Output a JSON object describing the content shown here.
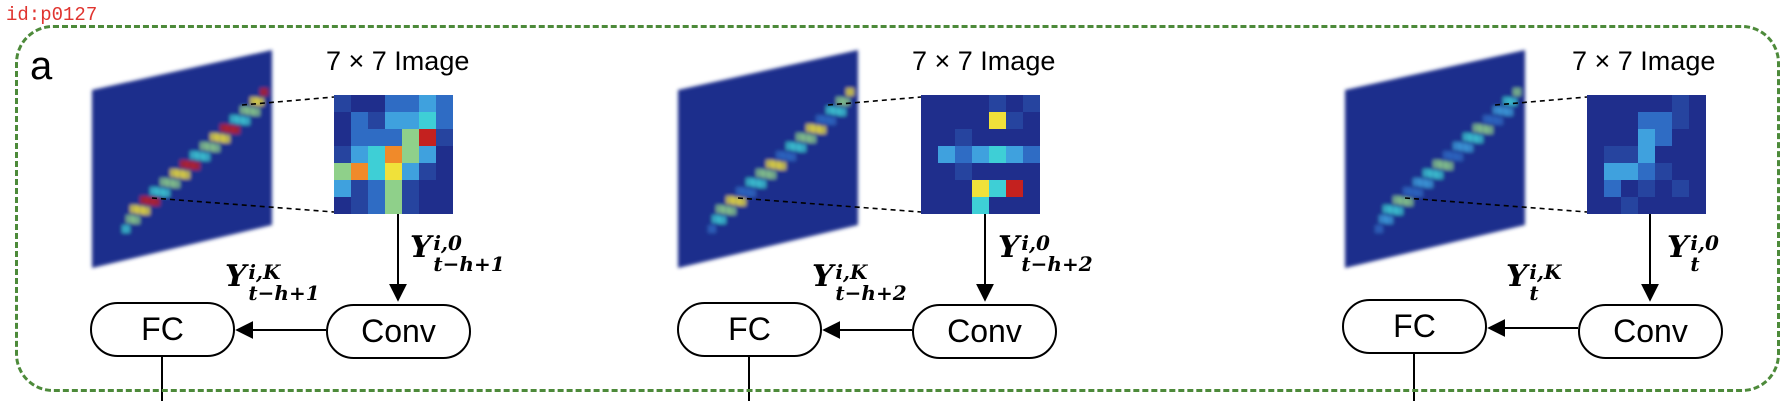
{
  "id_tag": "id:p0127",
  "panel_label": "a",
  "colors": {
    "dashed_border": "#4d8a3a",
    "heatmap_background": "#1f2e8c",
    "id_text": "#e0342f"
  },
  "blocks": [
    {
      "image_label": "7 × 7 Image",
      "conv_label": "Conv",
      "fc_label": "FC",
      "input": {
        "symbol": "Y",
        "sup": "i,0",
        "sub": "t−h+1"
      },
      "output": {
        "symbol": "Y",
        "sup": "i,K",
        "sub": "t−h+1"
      },
      "zoom_grid": [
        [
          2,
          1,
          1,
          3,
          3,
          4,
          3
        ],
        [
          1,
          3,
          2,
          4,
          4,
          5,
          3
        ],
        [
          1,
          3,
          3,
          3,
          6,
          9,
          2
        ],
        [
          2,
          4,
          5,
          8,
          6,
          4,
          1
        ],
        [
          6,
          8,
          5,
          7,
          4,
          2,
          1
        ],
        [
          4,
          2,
          3,
          6,
          2,
          1,
          1
        ],
        [
          1,
          2,
          3,
          6,
          2,
          1,
          1
        ]
      ]
    },
    {
      "image_label": "7 × 7 Image",
      "conv_label": "Conv",
      "fc_label": "FC",
      "input": {
        "symbol": "Y",
        "sup": "i,0",
        "sub": "t−h+2"
      },
      "output": {
        "symbol": "Y",
        "sup": "i,K",
        "sub": "t−h+2"
      },
      "zoom_grid": [
        [
          1,
          1,
          1,
          1,
          2,
          1,
          2
        ],
        [
          1,
          1,
          1,
          1,
          7,
          2,
          1
        ],
        [
          1,
          1,
          2,
          1,
          1,
          1,
          1
        ],
        [
          1,
          4,
          3,
          4,
          5,
          4,
          3
        ],
        [
          1,
          1,
          2,
          1,
          1,
          1,
          1
        ],
        [
          1,
          1,
          1,
          7,
          5,
          9,
          1
        ],
        [
          1,
          1,
          1,
          5,
          1,
          1,
          1
        ]
      ]
    },
    {
      "image_label": "7 × 7 Image",
      "conv_label": "Conv",
      "fc_label": "FC",
      "input": {
        "symbol": "Y",
        "sup": "i,0",
        "sub": "t"
      },
      "output": {
        "symbol": "Y",
        "sup": "i,K",
        "sub": "t"
      },
      "zoom_grid": [
        [
          1,
          1,
          1,
          1,
          1,
          2,
          1
        ],
        [
          1,
          1,
          1,
          3,
          3,
          2,
          1
        ],
        [
          1,
          1,
          1,
          4,
          3,
          1,
          1
        ],
        [
          1,
          2,
          2,
          4,
          1,
          1,
          1
        ],
        [
          1,
          4,
          4,
          3,
          2,
          1,
          1
        ],
        [
          1,
          3,
          1,
          2,
          1,
          2,
          1
        ],
        [
          1,
          1,
          2,
          1,
          1,
          1,
          1
        ]
      ]
    }
  ]
}
